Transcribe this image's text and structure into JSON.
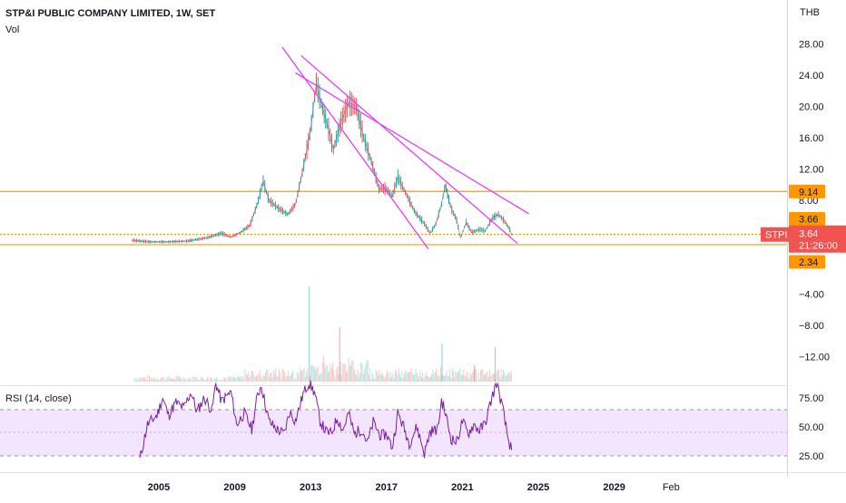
{
  "header": {
    "title": "STP&I PUBLIC COMPANY LIMITED, 1W, SET",
    "vol_label": "Vol",
    "currency": "THB"
  },
  "rsi": {
    "label": "RSI (14, close)"
  },
  "symbol_tag": {
    "symbol": "STPI",
    "price": "3.64",
    "countdown": "21:26:00"
  },
  "colors": {
    "orange": "#ff9800",
    "magenta": "#e040fb",
    "up": "#26a69a",
    "down": "#ef5350",
    "rsi_line": "#7b1fa2",
    "rsi_band": "#f3e5fd",
    "tag_red": "#f05350"
  },
  "chart_data": [
    {
      "type": "line",
      "title": "STP&I PUBLIC COMPANY LIMITED, 1W, SET",
      "x_axis": {
        "tick_labels": [
          "2005",
          "2009",
          "2013",
          "2017",
          "2021",
          "2025",
          "2029",
          "Feb"
        ]
      },
      "y_axis": {
        "ticks": [
          28,
          24,
          20,
          16,
          12,
          8,
          -4,
          -8,
          -12
        ],
        "tick_labels": [
          "28.00",
          "24.00",
          "20.00",
          "16.00",
          "12.00",
          "8.00",
          "−4.00",
          "−8.00",
          "−12.00"
        ],
        "unit": "THB"
      },
      "series": [
        {
          "values_xy": [
            [
              2003.6,
              2.9
            ],
            [
              2004.5,
              2.7
            ],
            [
              2005.5,
              2.7
            ],
            [
              2006.5,
              2.8
            ],
            [
              2007.5,
              3.2
            ],
            [
              2008.3,
              3.8
            ],
            [
              2008.8,
              3.3
            ],
            [
              2009.3,
              3.9
            ],
            [
              2009.8,
              4.8
            ],
            [
              2010.2,
              7.6
            ],
            [
              2010.5,
              10.5
            ],
            [
              2010.8,
              8.0
            ],
            [
              2011.3,
              7.0
            ],
            [
              2011.8,
              6.2
            ],
            [
              2012.2,
              7.5
            ],
            [
              2012.6,
              12.0
            ],
            [
              2013.0,
              17.0
            ],
            [
              2013.3,
              23.0
            ],
            [
              2013.6,
              20.0
            ],
            [
              2013.9,
              17.5
            ],
            [
              2014.2,
              14.5
            ],
            [
              2014.6,
              18.0
            ],
            [
              2015.0,
              20.5
            ],
            [
              2015.4,
              20.0
            ],
            [
              2015.8,
              16.0
            ],
            [
              2016.2,
              13.0
            ],
            [
              2016.6,
              9.5
            ],
            [
              2017.0,
              9.5
            ],
            [
              2017.3,
              8.5
            ],
            [
              2017.6,
              11.0
            ],
            [
              2018.0,
              9.0
            ],
            [
              2018.5,
              6.5
            ],
            [
              2019.0,
              5.0
            ],
            [
              2019.3,
              3.8
            ],
            [
              2019.6,
              5.0
            ],
            [
              2019.9,
              7.5
            ],
            [
              2020.1,
              10.0
            ],
            [
              2020.4,
              7.0
            ],
            [
              2020.7,
              5.5
            ],
            [
              2020.9,
              3.2
            ],
            [
              2021.2,
              5.2
            ],
            [
              2021.5,
              3.9
            ],
            [
              2021.9,
              4.3
            ],
            [
              2022.2,
              4.1
            ],
            [
              2022.6,
              5.8
            ],
            [
              2022.9,
              6.2
            ],
            [
              2023.2,
              5.4
            ],
            [
              2023.5,
              4.3
            ],
            [
              2023.6,
              3.64
            ]
          ]
        }
      ],
      "volume": {
        "x": [
          2012.9,
          2014.5,
          2019.9,
          2021.6,
          2022.7
        ],
        "spikes": [
          3.1,
          2.1,
          2.6,
          0.4,
          1.5
        ],
        "note_units": "unlabeled"
      },
      "horizontal_levels": [
        {
          "value": 9.14,
          "label": "9.14",
          "style": "solid"
        },
        {
          "value": 3.66,
          "label": "3.66",
          "style": "dotted"
        },
        {
          "value": 2.34,
          "label": "2.34",
          "style": "solid"
        }
      ],
      "trendlines": [
        {
          "from": [
            2011.5,
            27.6
          ],
          "to": [
            2019.2,
            1.8
          ]
        },
        {
          "from": [
            2012.5,
            26.5
          ],
          "to": [
            2023.9,
            2.5
          ]
        },
        {
          "from": [
            2012.2,
            24.3
          ],
          "to": [
            2024.5,
            6.3
          ]
        }
      ]
    },
    {
      "type": "line",
      "title": "RSI (14, close)",
      "y_axis": {
        "ticks": [
          75,
          50,
          25
        ],
        "tick_labels": [
          "75.00",
          "50.00",
          "25.00"
        ],
        "ylim": [
          20,
          92
        ]
      },
      "band": [
        30,
        70
      ],
      "series": [
        {
          "values_xy": [
            [
              2004.0,
              22
            ],
            [
              2004.4,
              52
            ],
            [
              2004.9,
              60
            ],
            [
              2005.2,
              75
            ],
            [
              2005.5,
              60
            ],
            [
              2005.9,
              71
            ],
            [
              2006.3,
              66
            ],
            [
              2006.7,
              80
            ],
            [
              2007.0,
              63
            ],
            [
              2007.4,
              75
            ],
            [
              2007.8,
              64
            ],
            [
              2008.0,
              88
            ],
            [
              2008.3,
              72
            ],
            [
              2008.8,
              80
            ],
            [
              2009.1,
              52
            ],
            [
              2009.5,
              62
            ],
            [
              2009.9,
              48
            ],
            [
              2010.2,
              77
            ],
            [
              2010.4,
              86
            ],
            [
              2010.8,
              55
            ],
            [
              2011.2,
              48
            ],
            [
              2011.6,
              44
            ],
            [
              2011.9,
              63
            ],
            [
              2012.2,
              55
            ],
            [
              2012.6,
              78
            ],
            [
              2012.9,
              88
            ],
            [
              2013.2,
              80
            ],
            [
              2013.5,
              55
            ],
            [
              2013.8,
              46
            ],
            [
              2014.1,
              44
            ],
            [
              2014.4,
              58
            ],
            [
              2014.7,
              47
            ],
            [
              2015.0,
              62
            ],
            [
              2015.3,
              44
            ],
            [
              2015.7,
              48
            ],
            [
              2016.0,
              36
            ],
            [
              2016.3,
              54
            ],
            [
              2016.7,
              42
            ],
            [
              2017.0,
              44
            ],
            [
              2017.3,
              32
            ],
            [
              2017.6,
              62
            ],
            [
              2017.9,
              50
            ],
            [
              2018.2,
              36
            ],
            [
              2018.6,
              50
            ],
            [
              2019.0,
              27
            ],
            [
              2019.3,
              46
            ],
            [
              2019.7,
              48
            ],
            [
              2019.9,
              73
            ],
            [
              2020.1,
              62
            ],
            [
              2020.4,
              40
            ],
            [
              2020.7,
              37
            ],
            [
              2021.0,
              55
            ],
            [
              2021.3,
              44
            ],
            [
              2021.6,
              52
            ],
            [
              2021.9,
              47
            ],
            [
              2022.2,
              53
            ],
            [
              2022.5,
              72
            ],
            [
              2022.8,
              88
            ],
            [
              2023.1,
              68
            ],
            [
              2023.4,
              40
            ],
            [
              2023.6,
              30
            ]
          ]
        }
      ]
    }
  ]
}
